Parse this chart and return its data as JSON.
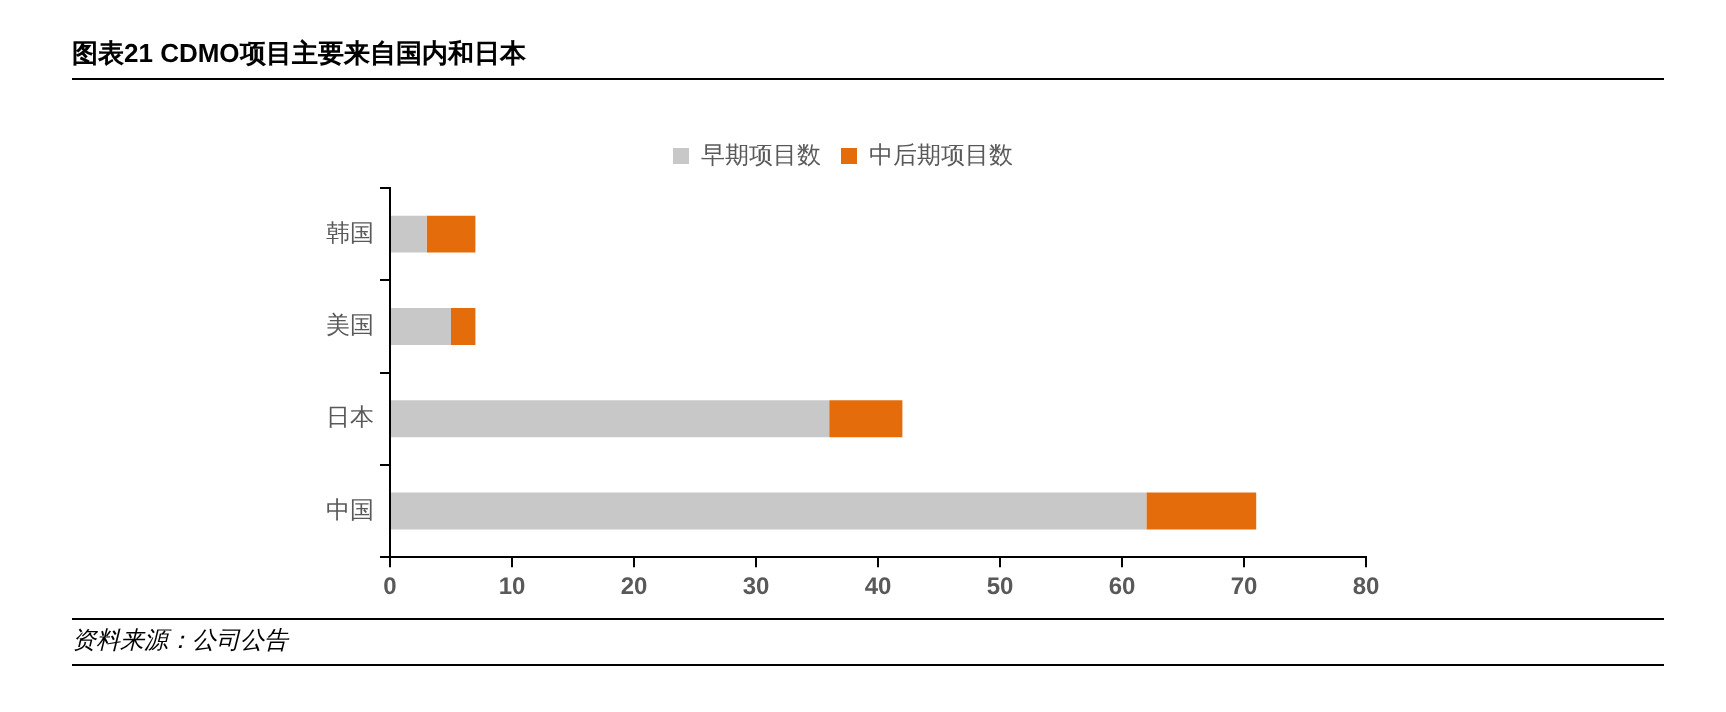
{
  "chart_data": {
    "type": "bar",
    "orientation": "horizontal",
    "stacked": true,
    "title": "图表21 CDMO项目主要来自国内和日本",
    "categories": [
      "韩国",
      "美国",
      "日本",
      "中国"
    ],
    "series": [
      {
        "name": "早期项目数",
        "color": "#c8c8c8",
        "values": [
          3,
          5,
          36,
          62
        ]
      },
      {
        "name": "中后期项目数",
        "color": "#e46c0a",
        "values": [
          4,
          2,
          6,
          9
        ]
      }
    ],
    "xlim": [
      0,
      80
    ],
    "xticks": [
      0,
      10,
      20,
      30,
      40,
      50,
      60,
      70,
      80
    ],
    "grid": false,
    "legend": "top",
    "annotations": [
      "资料来源：公司公告"
    ]
  }
}
